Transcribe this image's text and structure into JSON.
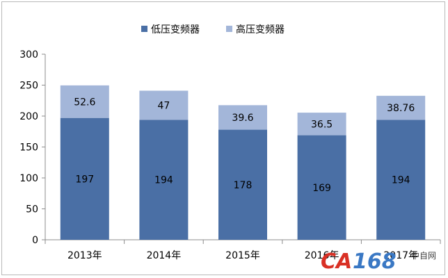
{
  "chart_data": {
    "type": "bar",
    "stacked": true,
    "categories": [
      "2013年",
      "2014年",
      "2015年",
      "2016年",
      "2017年"
    ],
    "series": [
      {
        "name": "低压变频器",
        "color": "#4a6fa5",
        "values": [
          197,
          194,
          178,
          169,
          194
        ]
      },
      {
        "name": "高压变频器",
        "color": "#a3b6d9",
        "values": [
          52.6,
          47,
          39.6,
          36.5,
          38.76
        ]
      }
    ],
    "data_labels": [
      [
        "197",
        "194",
        "178",
        "169",
        "194"
      ],
      [
        "52.6",
        "47",
        "39.6",
        "36.5",
        "38.76"
      ]
    ],
    "y_ticks": [
      "0",
      "50",
      "100",
      "150",
      "200",
      "250",
      "300"
    ],
    "ylim": [
      0,
      300
    ],
    "grid": false,
    "legend_position": "top"
  },
  "watermark": {
    "brand_a": "CA",
    "brand_b": "168",
    "site": "中自网"
  }
}
